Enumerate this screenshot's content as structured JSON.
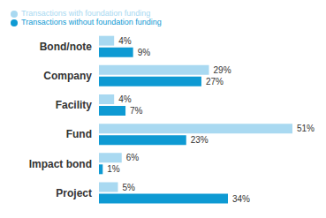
{
  "chart_data": {
    "type": "bar",
    "orientation": "horizontal",
    "categories": [
      "Bond/note",
      "Company",
      "Facility",
      "Fund",
      "Impact bond",
      "Project"
    ],
    "series": [
      {
        "name": "Transactions with foundation funding",
        "color": "#a9d9f1",
        "values": [
          4,
          29,
          4,
          51,
          6,
          5
        ],
        "value_labels": [
          "4%",
          "29%",
          "4%",
          "51%",
          "6%",
          "5%"
        ]
      },
      {
        "name": "Transactions without foundation funding",
        "color": "#0e9ad3",
        "values": [
          9,
          27,
          7,
          23,
          1,
          34
        ],
        "value_labels": [
          "9%",
          "27%",
          "7%",
          "23%",
          "1%",
          "34%"
        ]
      }
    ],
    "data_labels": true,
    "tick_labels": "y",
    "legend": "top",
    "grid": false
  }
}
